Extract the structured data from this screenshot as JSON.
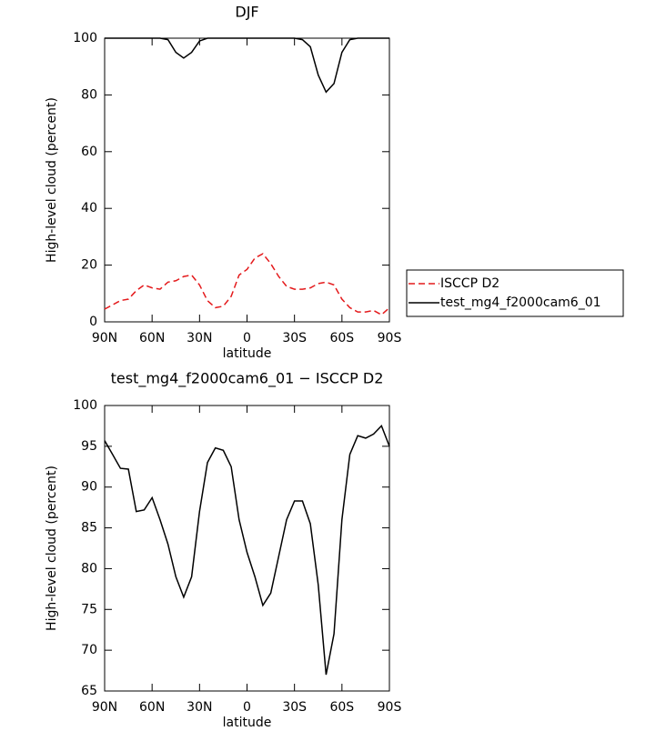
{
  "chart_data": [
    {
      "type": "line",
      "title": "DJF",
      "x_label": "latitude",
      "y_label": "High-level cloud (percent)",
      "x": [
        90,
        85,
        80,
        75,
        70,
        65,
        60,
        55,
        50,
        45,
        40,
        35,
        30,
        25,
        20,
        15,
        10,
        5,
        0,
        -5,
        -10,
        -15,
        -20,
        -25,
        -30,
        -35,
        -40,
        -45,
        -50,
        -55,
        -60,
        -65,
        -70,
        -75,
        -80,
        -85,
        -90
      ],
      "xlim": [
        90,
        -90
      ],
      "xticks": [
        {
          "value": 90,
          "label": "90N"
        },
        {
          "value": 60,
          "label": "60N"
        },
        {
          "value": 30,
          "label": "30N"
        },
        0,
        {
          "value": -30,
          "label": "30S"
        },
        {
          "value": -60,
          "label": "60S"
        },
        {
          "value": -90,
          "label": "90S"
        }
      ],
      "ylim": [
        0,
        100
      ],
      "yticks": [
        0,
        20,
        40,
        60,
        80,
        100
      ],
      "legend": "right",
      "series": [
        {
          "name": "ISCCP D2",
          "color": "#e41a1c",
          "style": "dashed",
          "values": [
            4.5,
            6,
            7.5,
            8,
            11,
            13,
            12,
            11.5,
            14,
            14.5,
            16,
            16.5,
            13,
            7.5,
            5,
            5.5,
            9,
            16.5,
            18.5,
            22.5,
            24,
            20.5,
            16,
            12.5,
            11.5,
            11.5,
            12,
            13.5,
            14,
            13,
            8,
            5,
            3.5,
            3.5,
            4,
            2.5,
            5
          ]
        },
        {
          "name": "test_mg4_f2000cam6_01",
          "color": "#000000",
          "style": "solid",
          "values": [
            100,
            100,
            100,
            100,
            100,
            100,
            100,
            100,
            99.5,
            95,
            93,
            95,
            99,
            100,
            100,
            100,
            100,
            100,
            100,
            100,
            100,
            100,
            100,
            100,
            100,
            99.5,
            97,
            87,
            81,
            84,
            95,
            99.5,
            100,
            100,
            100,
            100,
            100
          ]
        }
      ]
    },
    {
      "type": "line",
      "title": "test_mg4_f2000cam6_01 − ISCCP D2",
      "x_label": "latitude",
      "y_label": "High-level cloud (percent)",
      "x": [
        90,
        85,
        80,
        75,
        70,
        65,
        60,
        55,
        50,
        45,
        40,
        35,
        30,
        25,
        20,
        15,
        10,
        5,
        0,
        -5,
        -10,
        -15,
        -20,
        -25,
        -30,
        -35,
        -40,
        -45,
        -50,
        -55,
        -60,
        -65,
        -70,
        -75,
        -80,
        -85,
        -90
      ],
      "xlim": [
        90,
        -90
      ],
      "xticks": [
        {
          "value": 90,
          "label": "90N"
        },
        {
          "value": 60,
          "label": "60N"
        },
        {
          "value": 30,
          "label": "30N"
        },
        0,
        {
          "value": -30,
          "label": "30S"
        },
        {
          "value": -60,
          "label": "60S"
        },
        {
          "value": -90,
          "label": "90S"
        }
      ],
      "ylim": [
        65,
        100
      ],
      "yticks": [
        65,
        70,
        75,
        80,
        85,
        90,
        95,
        100
      ],
      "series": [
        {
          "color": "#000000",
          "style": "solid",
          "values": [
            95.7,
            94,
            92.3,
            92.2,
            87,
            87.2,
            88.7,
            86,
            83,
            79,
            76.5,
            79,
            87,
            93,
            94.8,
            94.5,
            92.5,
            86,
            82,
            79,
            75.5,
            77,
            81.5,
            86,
            88.3,
            88.3,
            85.5,
            78,
            67,
            72,
            86,
            94,
            96.3,
            96,
            96.5,
            97.5,
            95
          ]
        }
      ]
    }
  ]
}
